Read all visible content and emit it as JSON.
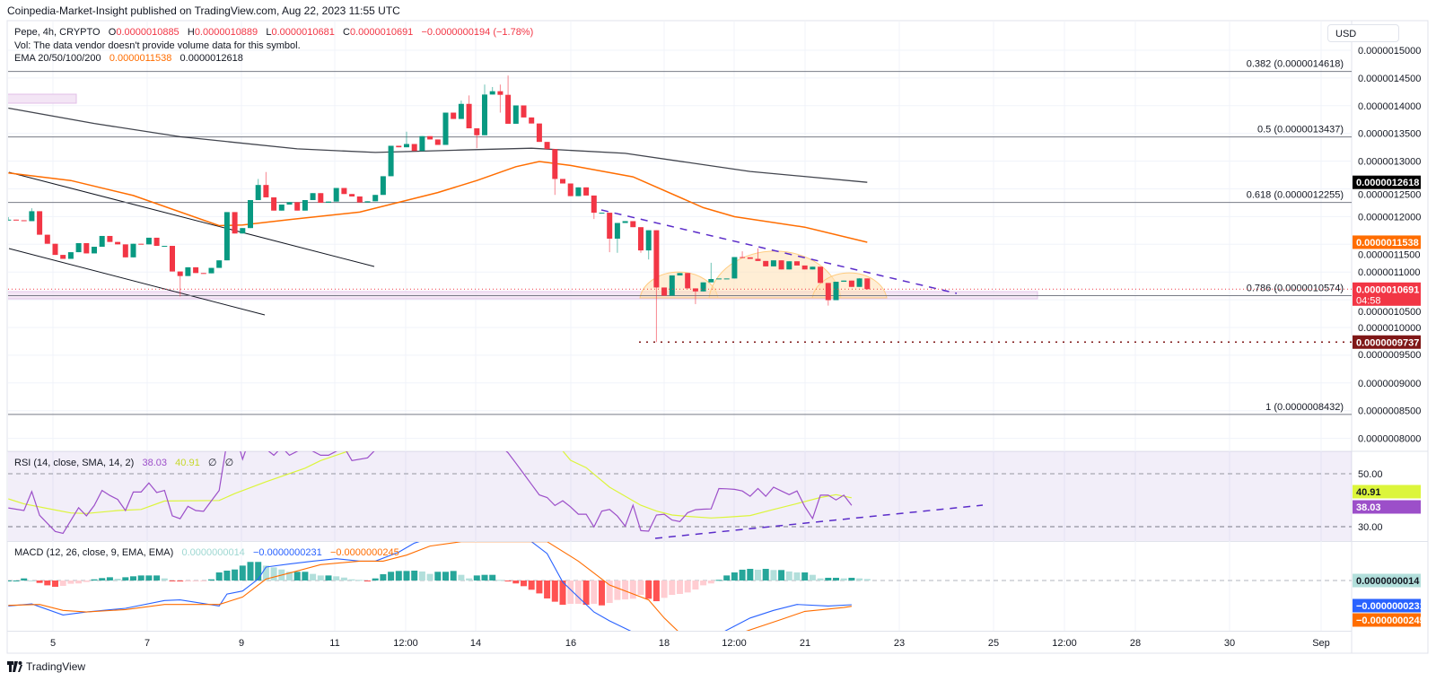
{
  "publisher_line": "Coinpedia-Market-Insight published on TradingView.com, Aug 22, 2023 11:55 UTC",
  "legend": {
    "symbol": "Pepe, 4h, CRYPTO",
    "o_label": "O",
    "o": "0.0000010885",
    "h_label": "H",
    "h": "0.0000010889",
    "l_label": "L",
    "l": "0.0000010681",
    "c_label": "C",
    "c": "0.0000010691",
    "change": "−0.0000000194 (−1.78%)",
    "vol": "Vol: The data vendor doesn't provide volume data for this symbol.",
    "ema_label": "EMA 20/50/100/200",
    "ema_values": [
      "0.0000011538",
      "0.0000012618"
    ]
  },
  "currency_button": "USD",
  "price_axis": {
    "ticks": [
      "0.0000015000",
      "0.0000014500",
      "0.0000014000",
      "0.0000013500",
      "0.0000013000",
      "0.0000012500",
      "0.0000012000",
      "0.0000011500",
      "0.0000011000",
      "0.0000010500",
      "0.0000010000",
      "0.0000009500",
      "0.0000009000",
      "0.0000008500",
      "0.0000008000"
    ],
    "badges": [
      {
        "label": "0.0000012618",
        "color": "#000000",
        "text_color": "#ffffff"
      },
      {
        "label": "0.0000011538",
        "color": "#ff6d00",
        "text_color": "#ffffff"
      },
      {
        "label": "0.0000010691",
        "sub": "04:58",
        "color": "#f23645",
        "text_color": "#ffffff"
      },
      {
        "label": "0.0000009737",
        "color": "#7f1717",
        "text_color": "#ffffff"
      }
    ]
  },
  "fib_levels": [
    {
      "label": "0.382 (0.0000014618)",
      "price": 1.4618e-06
    },
    {
      "label": "0.5 (0.0000013437)",
      "price": 1.3437e-06
    },
    {
      "label": "0.618 (0.0000012255)",
      "price": 1.2255e-06
    },
    {
      "label": "0.786 (0.0000010574)",
      "price": 1.0574e-06
    },
    {
      "label": "1 (0.0000008432)",
      "price": 8.432e-07
    }
  ],
  "rsi": {
    "label": "RSI (14, close, SMA, 14, 2)",
    "value": "38.03",
    "sma_value": "40.91",
    "na_values": [
      "∅",
      "∅"
    ],
    "levels": [
      "50.00",
      "30.00"
    ],
    "badges": [
      {
        "label": "40.91",
        "color": "#dcf53b",
        "text_color": "#131722"
      },
      {
        "label": "38.03",
        "color": "#9c4fc9",
        "text_color": "#ffffff"
      }
    ]
  },
  "macd": {
    "label": "MACD (12, 26, close, 9, EMA, EMA)",
    "histogram_value": "0.0000000014",
    "macd_value": "−0.0000000231",
    "signal_value": "−0.0000000245",
    "badges": [
      {
        "label": "0.0000000014",
        "color": "#b2dfdb",
        "text_color": "#131722"
      },
      {
        "label": "−0.0000000231",
        "color": "#2962ff",
        "text_color": "#ffffff"
      },
      {
        "label": "−0.0000000245",
        "color": "#ff6d00",
        "text_color": "#ffffff"
      }
    ]
  },
  "time_axis": [
    "5",
    "7",
    "9",
    "11",
    "12:00",
    "14",
    "16",
    "18",
    "12:00",
    "21",
    "23",
    "25",
    "12:00",
    "28",
    "30",
    "Sep"
  ],
  "footer": {
    "logo_text": "TradingView"
  },
  "colors": {
    "up": "#089981",
    "down": "#f23645",
    "ema50": "#ff6d00",
    "ema200": "#131722",
    "rsi": "#9c4fc9",
    "rsi_sma": "#dcf53b",
    "macd": "#2962ff",
    "signal": "#ff6d00",
    "hist_up_strong": "#26a69a",
    "hist_up_weak": "#b2dfdb",
    "hist_down_strong": "#ff5252",
    "hist_down_weak": "#ffcdd2",
    "trendline": "#5b2cc9",
    "pattern_fill": "#ffe0b2",
    "support_zone": "#e1bee7"
  },
  "chart_data": {
    "type": "candlestick",
    "symbol": "Pepe",
    "interval": "4h",
    "first_open": 1.1945e-06,
    "last_open": 1.0885e-06,
    "closes": [
      1.1945e-06,
      1.1934e-06,
      1.1918e-06,
      1.2097e-06,
      1.1673e-06,
      1.151e-06,
      1.1309e-06,
      1.1238e-06,
      1.1358e-06,
      1.1521e-06,
      1.1336e-06,
      1.1456e-06,
      1.1651e-06,
      1.1543e-06,
      1.1499e-06,
      1.1265e-06,
      1.151e-06,
      1.1499e-06,
      1.1619e-06,
      1.1472e-06,
      1.1472e-06,
      1.101e-06,
      1.0928e-06,
      1.1086e-06,
      1.0982e-06,
      1.0977e-06,
      1.1075e-06,
      1.1211e-06,
      1.2081e-06,
      1.1695e-06,
      1.1793e-06,
      1.2298e-06,
      1.257e-06,
      1.2347e-06,
      1.2108e-06,
      1.2217e-06,
      1.226e-06,
      1.2108e-06,
      1.2298e-06,
      1.2423e-06,
      1.2249e-06,
      1.2271e-06,
      1.2516e-06,
      1.2407e-06,
      1.2363e-06,
      1.2255e-06,
      1.2276e-06,
      1.2391e-06,
      1.2728e-06,
      1.3277e-06,
      1.325e-06,
      1.3309e-06,
      1.3184e-06,
      1.3451e-06,
      1.3391e-06,
      1.3293e-06,
      1.3875e-06,
      1.3761e-06,
      1.4033e-06,
      1.3592e-06,
      1.3467e-06,
      1.4201e-06,
      1.4261e-06,
      1.4196e-06,
      1.3674e-06,
      1.4005e-06,
      1.3788e-06,
      1.3679e-06,
      1.3347e-06,
      1.3217e-06,
      1.2679e-06,
      1.2597e-06,
      1.2369e-06,
      1.2527e-06,
      1.238e-06,
      1.207e-06,
      1.207e-06,
      1.1602e-06,
      1.1885e-06,
      1.1918e-06,
      1.1809e-06,
      1.139e-06,
      1.1754e-06,
      1.0721e-06,
      1.0574e-06,
      1.0939e-06,
      1.0982e-06,
      1.0705e-06,
      1.0651e-06,
      1.0814e-06,
      1.0874e-06,
      1.0884e-06,
      1.0884e-06,
      1.127e-06,
      1.1265e-06,
      1.1238e-06,
      1.12e-06,
      1.1102e-06,
      1.1211e-06,
      1.1047e-06,
      1.1194e-06,
      1.1118e-06,
      1.1047e-06,
      1.1096e-06,
      1.0803e-06,
      1.0493e-06,
      1.0825e-06,
      1.0846e-06,
      1.0732e-06,
      1.0885e-06,
      1.0691e-06
    ],
    "highs": {
      "0": 1.199e-06,
      "3": 1.215e-06,
      "32": 1.2679e-06,
      "33": 1.2804e-06,
      "51": 1.3532e-06,
      "58": 1.4093e-06,
      "59": 1.4185e-06,
      "61": 1.4381e-06,
      "62": 1.4337e-06,
      "63": 1.4381e-06,
      "64": 1.4544e-06,
      "90": 1.1167e-06,
      "94": 1.1374e-06,
      "96": 1.1428e-06,
      "109": 1.0889e-06
    },
    "lows": {
      "22": 1.0558e-06,
      "60": 1.3233e-06,
      "63": 1.3875e-06,
      "70": 1.2391e-06,
      "75": 1.1956e-06,
      "77": 1.1358e-06,
      "78": 1.1347e-06,
      "81": 1.1347e-06,
      "82": 1.1227e-06,
      "83": 9.737e-07,
      "88": 1.0422e-06,
      "105": 1.0395e-06,
      "110": 1.0681e-06
    },
    "ema50": [
      [
        0,
        1.2787e-06
      ],
      [
        8,
        1.265e-06
      ],
      [
        16,
        1.238e-06
      ],
      [
        27,
        1.1836e-06
      ],
      [
        30,
        1.185e-06
      ],
      [
        36,
        1.1945e-06
      ],
      [
        45,
        1.2081e-06
      ],
      [
        55,
        1.2434e-06
      ],
      [
        60,
        1.2651e-06
      ],
      [
        65,
        1.29e-06
      ],
      [
        68,
        1.2994e-06
      ],
      [
        72,
        1.2923e-06
      ],
      [
        80,
        1.2717e-06
      ],
      [
        89,
        1.2162e-06
      ],
      [
        93,
        1.1999e-06
      ],
      [
        102,
        1.1809e-06
      ],
      [
        110,
        1.1538e-06
      ]
    ],
    "ema200": [
      [
        0,
        1.3956e-06
      ],
      [
        11,
        1.368e-06
      ],
      [
        22,
        1.344e-06
      ],
      [
        37,
        1.3222e-06
      ],
      [
        47,
        1.3157e-06
      ],
      [
        58,
        1.32e-06
      ],
      [
        67,
        1.3233e-06
      ],
      [
        79,
        1.3141e-06
      ],
      [
        95,
        1.2814e-06
      ],
      [
        110,
        1.2618e-06
      ]
    ],
    "key_low": 9.737e-07,
    "last_price": 1.0691e-06,
    "price_range": [
      8e-07,
      1.5e-06
    ],
    "rsi": {
      "range": [
        24.6,
        58.5
      ],
      "line": [
        [
          0,
          37.1
        ],
        [
          2,
          36.1
        ],
        [
          3,
          43.3
        ],
        [
          4,
          34.3
        ],
        [
          6,
          28.2
        ],
        [
          7,
          27.5
        ],
        [
          9,
          37.2
        ],
        [
          10,
          34.1
        ],
        [
          11,
          38
        ],
        [
          12,
          43.7
        ],
        [
          13,
          41.8
        ],
        [
          14,
          40.3
        ],
        [
          15,
          36.1
        ],
        [
          16,
          43.1
        ],
        [
          17,
          43.1
        ],
        [
          18,
          46.5
        ],
        [
          19,
          42.9
        ],
        [
          20,
          43.7
        ],
        [
          21,
          34.1
        ],
        [
          22,
          33
        ],
        [
          23,
          37.7
        ],
        [
          24,
          36.1
        ],
        [
          25,
          35.8
        ],
        [
          27,
          43.7
        ],
        [
          28,
          62
        ],
        [
          29,
          66
        ],
        [
          30,
          55.5
        ],
        [
          31,
          64
        ],
        [
          34,
          57
        ],
        [
          35,
          60
        ],
        [
          36,
          57
        ],
        [
          38,
          60
        ],
        [
          40,
          57
        ],
        [
          41,
          57
        ],
        [
          43,
          60
        ],
        [
          44,
          55
        ],
        [
          46,
          56
        ],
        [
          47,
          59
        ],
        [
          51,
          65
        ],
        [
          56,
          68
        ],
        [
          61,
          66
        ],
        [
          64,
          57.9
        ],
        [
          65,
          54
        ],
        [
          66,
          50
        ],
        [
          67,
          46
        ],
        [
          68,
          42
        ],
        [
          69,
          41
        ],
        [
          70,
          38
        ],
        [
          71,
          39.8
        ],
        [
          72,
          37.5
        ],
        [
          73,
          34.7
        ],
        [
          74,
          34.7
        ],
        [
          75,
          29.9
        ],
        [
          76,
          35.9
        ],
        [
          77,
          36.5
        ],
        [
          78,
          34
        ],
        [
          79,
          30.2
        ],
        [
          80,
          38.1
        ],
        [
          81,
          28.5
        ],
        [
          82,
          28.3
        ],
        [
          83,
          34.4
        ],
        [
          84,
          34.7
        ],
        [
          85,
          32.5
        ],
        [
          86,
          31.9
        ],
        [
          87,
          35.3
        ],
        [
          88,
          36.4
        ],
        [
          89,
          36.6
        ],
        [
          90,
          36.7
        ],
        [
          91,
          44.4
        ],
        [
          92,
          44.3
        ],
        [
          93,
          44.1
        ],
        [
          94,
          43.5
        ],
        [
          95,
          41.5
        ],
        [
          96,
          44.4
        ],
        [
          97,
          41.5
        ],
        [
          98,
          44.9
        ],
        [
          99,
          43.5
        ],
        [
          100,
          42.1
        ],
        [
          101,
          43.5
        ],
        [
          102,
          37.6
        ],
        [
          103,
          33.1
        ],
        [
          104,
          41.9
        ],
        [
          105,
          41.9
        ],
        [
          106,
          40.1
        ],
        [
          107,
          41.9
        ],
        [
          108,
          38.03
        ]
      ],
      "sma": [
        [
          0,
          40.5
        ],
        [
          2,
          38.6
        ],
        [
          6,
          36.3
        ],
        [
          8,
          35.2
        ],
        [
          10,
          35
        ],
        [
          14,
          36.1
        ],
        [
          17,
          36.5
        ],
        [
          20,
          39.7
        ],
        [
          27,
          39.9
        ],
        [
          29,
          42.5
        ],
        [
          33,
          47
        ],
        [
          38,
          52.1
        ],
        [
          40,
          55
        ],
        [
          44,
          59
        ],
        [
          47,
          62
        ],
        [
          56,
          66
        ],
        [
          67,
          62
        ],
        [
          71,
          58.6
        ],
        [
          72,
          55.1
        ],
        [
          74,
          52.3
        ],
        [
          77,
          44.9
        ],
        [
          81,
          38.1
        ],
        [
          83,
          35.9
        ],
        [
          85,
          34.4
        ],
        [
          87,
          33.9
        ],
        [
          90,
          33.3
        ],
        [
          92,
          33.6
        ],
        [
          95,
          34.2
        ],
        [
          98,
          36.5
        ],
        [
          101,
          38.7
        ],
        [
          104,
          41
        ],
        [
          106,
          42.1
        ],
        [
          108,
          40.91
        ]
      ]
    },
    "macd": {
      "histogram": [
        0.0,
        0.0,
        2e-09,
        0.0,
        -2.3e-09,
        -4.6e-09,
        -6e-09,
        -5.1e-09,
        -3.1e-09,
        -2.8e-09,
        -1.4e-09,
        1.1e-09,
        2.3e-09,
        3.1e-09,
        1.7e-09,
        3.1e-09,
        4e-09,
        4.8e-09,
        4.8e-09,
        4.8e-09,
        2e-09,
        -3e-10,
        -9e-10,
        -9e-10,
        -9e-10,
        -3e-10,
        1.1e-09,
        7.7e-09,
        9.4e-09,
        1.05e-08,
        1.42e-08,
        1.77e-08,
        1.77e-08,
        1.42e-08,
        1.25e-08,
        1.05e-08,
        8.3e-09,
        8.3e-09,
        8.3e-09,
        6.3e-09,
        4.8e-09,
        4.8e-09,
        4e-09,
        2.8e-09,
        1.1e-09,
        6e-10,
        -9e-10,
        2e-09,
        6e-09,
        8.3e-09,
        9.1e-09,
        9.1e-09,
        9.4e-09,
        8.6e-09,
        6.3e-09,
        8.3e-09,
        8.3e-09,
        9.1e-09,
        5.4e-09,
        2e-09,
        4.8e-09,
        5.4e-09,
        5.4e-09,
        6e-10,
        -9e-10,
        -2.8e-09,
        -5.4e-09,
        -8.8e-09,
        -1.23e-08,
        -1.71e-08,
        -2.02e-08,
        -2.31e-08,
        -2.22e-08,
        -2.22e-08,
        -2.31e-08,
        -2.22e-08,
        -2.37e-08,
        -2.14e-08,
        -1.85e-08,
        -1.8e-08,
        -1.74e-08,
        -1.37e-08,
        -1.74e-08,
        -1.97e-08,
        -1.65e-08,
        -1.37e-08,
        -1.28e-08,
        -1.14e-08,
        -8.6e-09,
        -4.6e-09,
        -2.8e-09,
        6e-10,
        4.8e-09,
        7.7e-09,
        1.03e-08,
        1.11e-08,
        1.03e-08,
        1.11e-08,
        1e-08,
        1e-08,
        8.6e-09,
        7.7e-09,
        7.7e-09,
        5.4e-09,
        2e-09,
        2.6e-09,
        2.6e-09,
        2e-09,
        2.6e-09,
        2e-09,
        1.4e-09
      ],
      "macd_line": [
        [
          0,
          -2.43e-08
        ],
        [
          3,
          -2.23e-08
        ],
        [
          7,
          -3.28e-08
        ],
        [
          10,
          -3e-08
        ],
        [
          15,
          -2.65e-08
        ],
        [
          20,
          -1.91e-08
        ],
        [
          22,
          -1.85e-08
        ],
        [
          27,
          -2.43e-08
        ],
        [
          28,
          -1.29e-08
        ],
        [
          30,
          -1e-08
        ],
        [
          32,
          1.4e-09
        ],
        [
          33,
          1.28e-08
        ],
        [
          36,
          1.57e-08
        ],
        [
          39,
          1.85e-08
        ],
        [
          42,
          2.08e-08
        ],
        [
          45,
          1.85e-08
        ],
        [
          47,
          1.85e-08
        ],
        [
          50,
          2.7e-08
        ],
        [
          52,
          3.56e-08
        ],
        [
          56,
          4.5e-08
        ],
        [
          63,
          4.5e-08
        ],
        [
          67,
          3.7e-08
        ],
        [
          69,
          2.56e-08
        ],
        [
          71,
          -1.5e-09
        ],
        [
          75,
          -3e-08
        ],
        [
          77,
          -3.85e-08
        ],
        [
          83,
          -6e-08
        ],
        [
          90,
          -5.5e-08
        ],
        [
          95,
          -3.57e-08
        ],
        [
          98,
          -2.85e-08
        ],
        [
          101,
          -2.28e-08
        ],
        [
          105,
          -2.43e-08
        ],
        [
          108,
          -2.31e-08
        ]
      ],
      "signal_line": [
        [
          0,
          -2.37e-08
        ],
        [
          4,
          -2.28e-08
        ],
        [
          7,
          -2.85e-08
        ],
        [
          10,
          -3e-08
        ],
        [
          15,
          -2.77e-08
        ],
        [
          20,
          -2.28e-08
        ],
        [
          24,
          -2.28e-08
        ],
        [
          27,
          -2.28e-08
        ],
        [
          30,
          -1.57e-08
        ],
        [
          33,
          1.4e-09
        ],
        [
          36,
          7.1e-09
        ],
        [
          40,
          1.51e-08
        ],
        [
          45,
          1.85e-08
        ],
        [
          48,
          1.85e-08
        ],
        [
          51,
          2.42e-08
        ],
        [
          54,
          3.28e-08
        ],
        [
          58,
          3.7e-08
        ],
        [
          69,
          3.7e-08
        ],
        [
          73,
          1.85e-08
        ],
        [
          77,
          -4.3e-09
        ],
        [
          82,
          -1.85e-08
        ],
        [
          84,
          -3.57e-08
        ],
        [
          86,
          -5e-08
        ],
        [
          93,
          -5.2e-08
        ],
        [
          99,
          -3.71e-08
        ],
        [
          102,
          -2.94e-08
        ],
        [
          107,
          -2.57e-08
        ],
        [
          108,
          -2.45e-08
        ]
      ]
    }
  }
}
